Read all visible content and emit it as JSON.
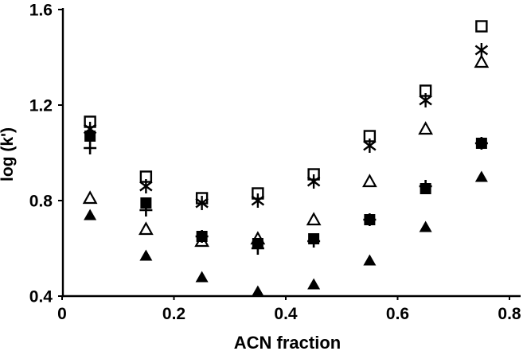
{
  "chart_data": {
    "type": "scatter",
    "title": "",
    "xlabel": "ACN fraction",
    "ylabel": "log (k')",
    "xlim": [
      0,
      0.8
    ],
    "ylim": [
      0.4,
      1.6
    ],
    "x_ticks": [
      0,
      0.2,
      0.4,
      0.6,
      0.8
    ],
    "x_tick_labels": [
      "0",
      "0.2",
      "0.4",
      "0.6",
      "0.8"
    ],
    "y_ticks": [
      0.4,
      0.8,
      1.2,
      1.6
    ],
    "y_tick_labels": [
      "0.4",
      "0.8",
      "1.2",
      "1.6"
    ],
    "grid": false,
    "legend": "none",
    "marker_color": "#000000",
    "background_color": "#ffffff",
    "x": [
      0.05,
      0.15,
      0.25,
      0.35,
      0.45,
      0.55,
      0.65,
      0.75
    ],
    "series": [
      {
        "name": "open-triangle",
        "marker": "triangle-open",
        "values": [
          0.81,
          0.68,
          0.63,
          0.64,
          0.72,
          0.88,
          1.1,
          1.38
        ]
      },
      {
        "name": "plus",
        "marker": "plus",
        "values": [
          1.02,
          0.76,
          0.65,
          0.6,
          0.63,
          0.72,
          0.86,
          1.04
        ]
      },
      {
        "name": "open-square",
        "marker": "square-open",
        "values": [
          1.13,
          0.9,
          0.81,
          0.83,
          0.91,
          1.07,
          1.26,
          1.53
        ]
      },
      {
        "name": "asterisk",
        "marker": "asterisk",
        "values": [
          1.1,
          0.86,
          0.79,
          0.8,
          0.88,
          1.03,
          1.22,
          1.43
        ]
      },
      {
        "name": "filled-square",
        "marker": "square-filled",
        "values": [
          1.07,
          0.79,
          0.65,
          0.62,
          0.64,
          0.72,
          0.85,
          1.04
        ]
      },
      {
        "name": "filled-triangle",
        "marker": "triangle-filled",
        "values": [
          0.74,
          0.57,
          0.48,
          0.42,
          0.45,
          0.55,
          0.69,
          0.9
        ]
      }
    ]
  }
}
